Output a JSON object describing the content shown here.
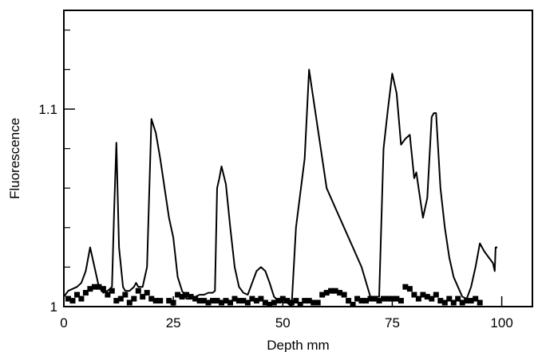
{
  "chart_data": {
    "type": "line",
    "title": "",
    "xlabel": "Depth mm",
    "ylabel": "Fluorescence",
    "xlim": [
      0,
      107
    ],
    "ylim": [
      1.0,
      1.15
    ],
    "xticks": [
      {
        "value": 0,
        "label": "0"
      },
      {
        "value": 25,
        "label": "25"
      },
      {
        "value": 50,
        "label": "50"
      },
      {
        "value": 75,
        "label": "75"
      },
      {
        "value": 100,
        "label": "100"
      }
    ],
    "yticks_major": [
      {
        "value": 1.0,
        "label": "1"
      },
      {
        "value": 1.1,
        "label": "1.1"
      }
    ],
    "yticks_minor": [
      1.02,
      1.04,
      1.06,
      1.08,
      1.12,
      1.14
    ],
    "grid": false,
    "legend": "none",
    "series": [
      {
        "style": "line",
        "color": "#000000",
        "x": [
          0,
          1,
          2,
          3,
          4,
          5,
          6,
          7,
          8,
          9,
          10,
          11,
          11.5,
          12,
          12.6,
          13.5,
          14,
          15,
          16,
          16.5,
          17,
          18,
          19,
          20,
          21,
          22,
          23,
          24,
          25,
          26,
          27,
          28,
          29,
          30,
          31,
          32,
          33,
          34,
          34.5,
          35,
          35.5,
          36,
          37,
          38,
          39,
          40,
          41,
          42,
          43,
          44,
          45,
          46,
          47,
          48,
          49,
          50,
          51,
          52,
          53,
          55,
          56,
          57,
          58,
          59,
          60,
          62,
          64,
          66,
          68,
          70,
          71,
          72,
          73,
          74,
          75,
          76,
          77,
          78,
          79,
          80,
          80.5,
          81,
          82,
          83,
          84,
          84.5,
          85,
          86,
          87,
          88,
          89,
          90,
          91,
          92,
          93,
          94,
          95,
          96,
          97,
          98,
          98.4,
          98.6,
          99
        ],
        "y": [
          1.005,
          1.008,
          1.009,
          1.01,
          1.012,
          1.018,
          1.03,
          1.02,
          1.01,
          1.007,
          1.008,
          1.01,
          1.05,
          1.083,
          1.03,
          1.01,
          1.008,
          1.008,
          1.01,
          1.012,
          1.01,
          1.01,
          1.02,
          1.095,
          1.088,
          1.075,
          1.06,
          1.045,
          1.035,
          1.015,
          1.008,
          1.004,
          1.004,
          1.005,
          1.006,
          1.006,
          1.007,
          1.007,
          1.008,
          1.06,
          1.065,
          1.071,
          1.062,
          1.04,
          1.02,
          1.01,
          1.007,
          1.006,
          1.012,
          1.018,
          1.02,
          1.018,
          1.012,
          1.005,
          1.003,
          1.002,
          1.002,
          1.0,
          1.04,
          1.075,
          1.12,
          1.105,
          1.09,
          1.075,
          1.06,
          1.05,
          1.04,
          1.03,
          1.02,
          1.005,
          1.005,
          1.005,
          1.08,
          1.1,
          1.118,
          1.108,
          1.082,
          1.085,
          1.087,
          1.065,
          1.068,
          1.06,
          1.045,
          1.055,
          1.096,
          1.098,
          1.098,
          1.06,
          1.04,
          1.025,
          1.015,
          1.01,
          1.005,
          1.004,
          1.01,
          1.02,
          1.032,
          1.028,
          1.025,
          1.022,
          1.018,
          1.03,
          1.03
        ]
      },
      {
        "style": "markers",
        "marker": "square",
        "color": "#000000",
        "x": [
          1,
          2,
          3,
          4,
          5,
          6,
          7,
          8,
          9,
          10,
          11,
          12,
          13,
          14,
          15,
          16,
          17,
          18,
          19,
          20,
          21,
          22,
          24,
          25,
          26,
          27,
          28,
          29,
          30,
          31,
          32,
          33,
          34,
          35,
          36,
          37,
          38,
          39,
          40,
          41,
          42,
          43,
          44,
          45,
          46,
          47,
          48,
          49,
          50,
          51,
          52,
          53,
          54,
          55,
          56,
          57,
          58,
          59,
          60,
          61,
          62,
          63,
          64,
          65,
          66,
          67,
          68,
          69,
          70,
          71,
          72,
          73,
          74,
          75,
          76,
          77,
          78,
          79,
          80,
          81,
          82,
          83,
          84,
          85,
          86,
          87,
          88,
          89,
          90,
          91,
          92,
          93,
          94,
          95
        ],
        "y": [
          1.004,
          1.003,
          1.006,
          1.004,
          1.007,
          1.009,
          1.01,
          1.01,
          1.009,
          1.006,
          1.008,
          1.003,
          1.004,
          1.006,
          1.002,
          1.004,
          1.008,
          1.005,
          1.007,
          1.004,
          1.003,
          1.003,
          1.003,
          1.002,
          1.006,
          1.005,
          1.006,
          1.005,
          1.004,
          1.003,
          1.003,
          1.002,
          1.003,
          1.003,
          1.002,
          1.003,
          1.002,
          1.004,
          1.003,
          1.003,
          1.002,
          1.004,
          1.003,
          1.004,
          1.002,
          1.001,
          1.002,
          1.003,
          1.004,
          1.003,
          1.002,
          1.003,
          1.001,
          1.003,
          1.003,
          1.002,
          1.002,
          1.006,
          1.007,
          1.008,
          1.008,
          1.007,
          1.006,
          1.003,
          1.001,
          1.004,
          1.003,
          1.003,
          1.004,
          1.004,
          1.003,
          1.004,
          1.004,
          1.004,
          1.004,
          1.003,
          1.01,
          1.009,
          1.006,
          1.004,
          1.006,
          1.005,
          1.004,
          1.006,
          1.003,
          1.002,
          1.004,
          1.002,
          1.004,
          1.002,
          1.003,
          1.003,
          1.004,
          1.002
        ]
      }
    ]
  }
}
